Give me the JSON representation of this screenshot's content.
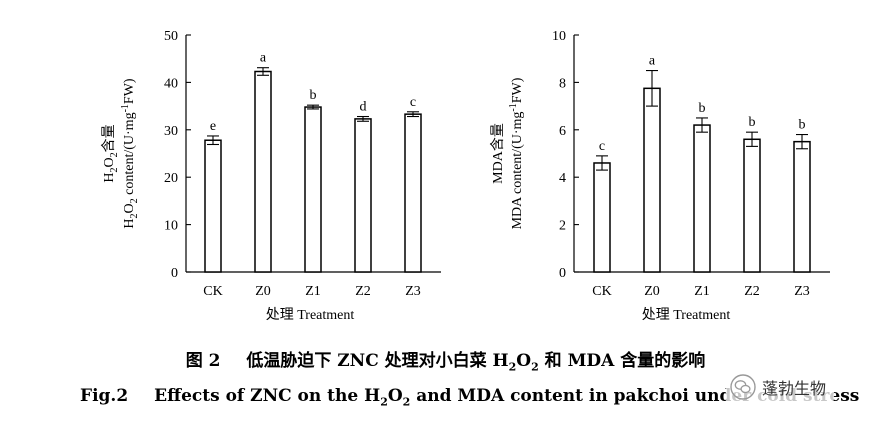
{
  "chart_data": [
    {
      "type": "bar",
      "categories": [
        "CK",
        "Z0",
        "Z1",
        "Z2",
        "Z3"
      ],
      "values": [
        27.8,
        42.3,
        34.8,
        32.3,
        33.3
      ],
      "errors": [
        0.9,
        0.8,
        0.4,
        0.5,
        0.5
      ],
      "letters": [
        "e",
        "a",
        "b",
        "d",
        "c"
      ],
      "ylim": [
        0,
        50
      ],
      "yticks": [
        0,
        10,
        20,
        30,
        40,
        50
      ],
      "ylabel_line1": "H2O2含量",
      "ylabel_line2": "H2O2 content/(U·mg-1FW)",
      "xlabel": "处理 Treatment"
    },
    {
      "type": "bar",
      "categories": [
        "CK",
        "Z0",
        "Z1",
        "Z2",
        "Z3"
      ],
      "values": [
        4.6,
        7.75,
        6.2,
        5.6,
        5.5
      ],
      "errors": [
        0.3,
        0.75,
        0.3,
        0.3,
        0.3
      ],
      "letters": [
        "c",
        "a",
        "b",
        "b",
        "b"
      ],
      "ylim": [
        0,
        10
      ],
      "yticks": [
        0,
        2,
        4,
        6,
        8,
        10
      ],
      "ylabel_line1": "MDA含量",
      "ylabel_line2": "MDA content/(U·mg-1FW)",
      "xlabel": "处理 Treatment"
    }
  ],
  "caption": {
    "cn_prefix": "图 2",
    "cn_text_a": "低温胁迫下 ZNC 处理对小白菜 H",
    "cn_sub_a": "2",
    "cn_text_b": "O",
    "cn_sub_b": "2",
    "cn_text_c": " 和 MDA 含量的影响",
    "en_prefix": "Fig.2",
    "en_text_a": "Effects of ZNC on the H",
    "en_sub_a": "2",
    "en_text_b": "O",
    "en_sub_b": "2",
    "en_text_c": " and MDA content in pakchoi under cold stress"
  },
  "watermark": {
    "text": "蓬勃生物",
    "icon": "wechat-icon"
  }
}
